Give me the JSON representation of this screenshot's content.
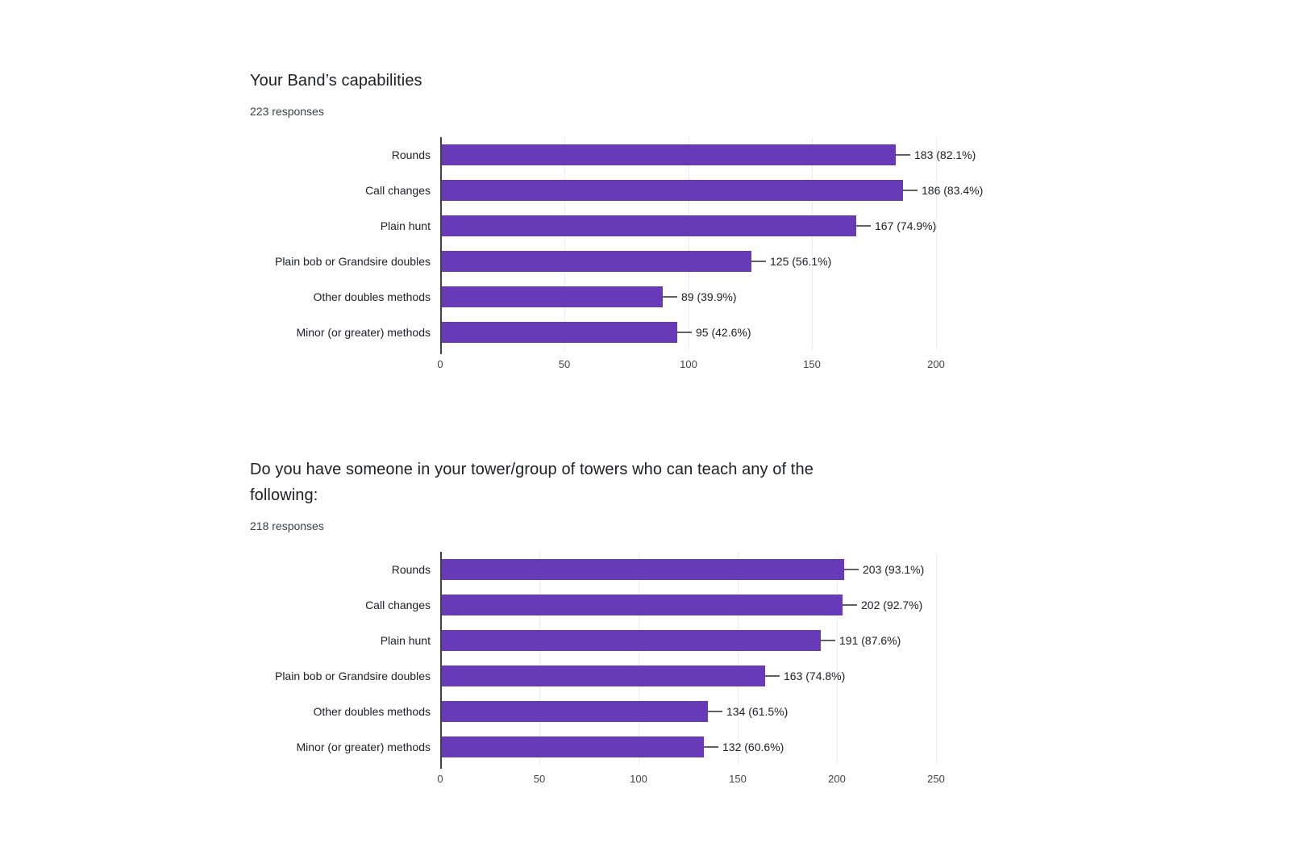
{
  "colors": {
    "bar": "#673ab7",
    "gridline": "#ececec",
    "axis": "#424242",
    "stem": "#616161",
    "title_text": "#202124",
    "muted_text": "#3c4043",
    "tick_text": "#444444",
    "background": "#ffffff"
  },
  "chart_data": [
    {
      "type": "bar",
      "orientation": "horizontal",
      "title": "Your Band’s capabilities",
      "responses": "223 responses",
      "categories": [
        "Rounds",
        "Call changes",
        "Plain hunt",
        "Plain bob or Grandsire doubles",
        "Other doubles methods",
        "Minor (or greater) methods"
      ],
      "values": [
        183,
        186,
        167,
        125,
        89,
        95
      ],
      "percentages": [
        82.1,
        83.4,
        74.9,
        56.1,
        39.9,
        42.6
      ],
      "value_labels": [
        "183 (82.1%)",
        "186 (83.4%)",
        "167 (74.9%)",
        "125 (56.1%)",
        "89 (39.9%)",
        "95 (42.6%)"
      ],
      "xticks": [
        0,
        50,
        100,
        150,
        200
      ],
      "xlim": [
        0,
        215
      ],
      "grid": true,
      "legend": "none",
      "bar_color": "#673ab7"
    },
    {
      "type": "bar",
      "orientation": "horizontal",
      "title": "Do you have someone in your tower/group of towers who can teach any of the following:",
      "responses": "218 responses",
      "categories": [
        "Rounds",
        "Call changes",
        "Plain hunt",
        "Plain bob or Grandsire doubles",
        "Other doubles methods",
        "Minor (or greater) methods"
      ],
      "values": [
        203,
        202,
        191,
        163,
        134,
        132
      ],
      "percentages": [
        93.1,
        92.7,
        87.6,
        74.8,
        61.5,
        60.6
      ],
      "value_labels": [
        "203 (93.1%)",
        "202 (92.7%)",
        "191 (87.6%)",
        "163 (74.8%)",
        "134 (61.5%)",
        "132 (60.6%)"
      ],
      "xticks": [
        0,
        50,
        100,
        150,
        200,
        250
      ],
      "xlim": [
        0,
        268
      ],
      "grid": true,
      "legend": "none",
      "bar_color": "#673ab7"
    }
  ]
}
